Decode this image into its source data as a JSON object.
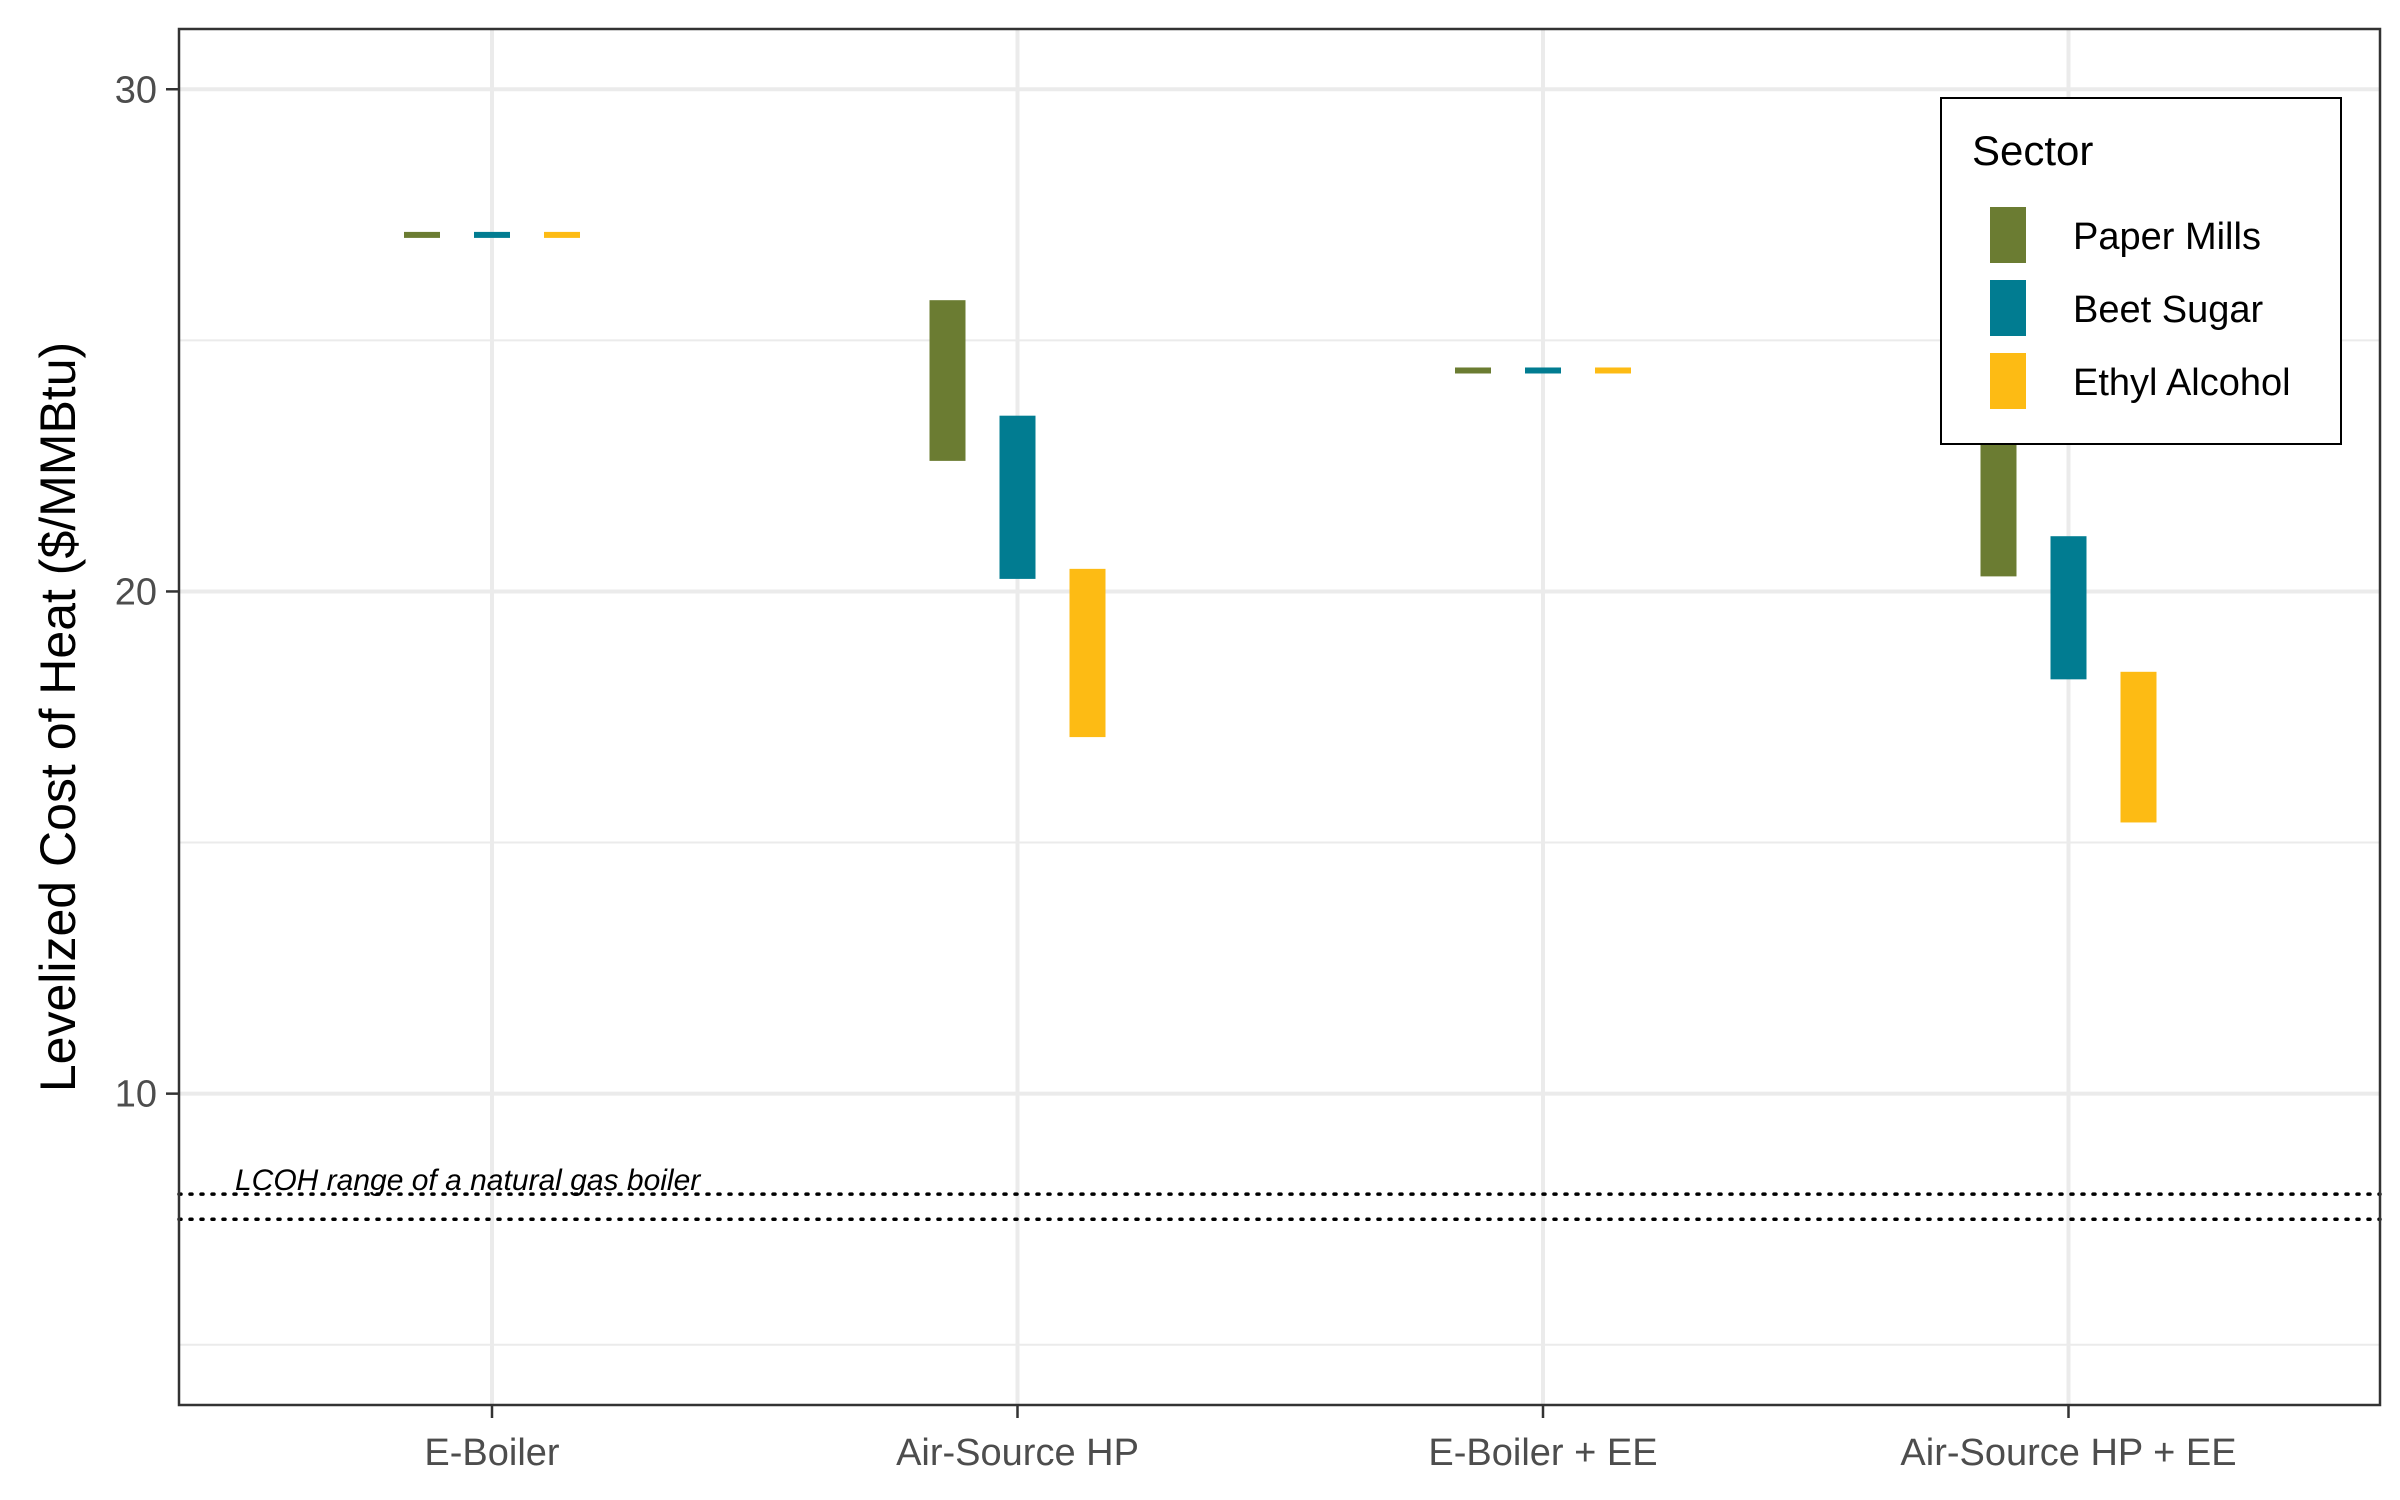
{
  "chart_data": {
    "type": "range-bar",
    "title": "",
    "xlabel": "",
    "ylabel": "Levelized Cost of Heat ($/MMBtu)",
    "ylim": [
      3.8,
      31.2
    ],
    "yticks": [
      10,
      20,
      30
    ],
    "grid": true,
    "legend": {
      "title": "Sector",
      "position": "top-right"
    },
    "categories": [
      "E-Boiler",
      "Air-Source HP",
      "E-Boiler + EE",
      "Air-Source HP + EE"
    ],
    "series": [
      {
        "name": "Paper Mills",
        "color": "#6B7C32",
        "ranges": [
          [
            27.05,
            27.15
          ],
          [
            22.6,
            25.8
          ],
          [
            24.35,
            24.45
          ],
          [
            20.3,
            23.5
          ]
        ]
      },
      {
        "name": "Beet Sugar",
        "color": "#017C91",
        "ranges": [
          [
            27.05,
            27.15
          ],
          [
            20.25,
            23.5
          ],
          [
            24.35,
            24.45
          ],
          [
            18.25,
            21.1
          ]
        ]
      },
      {
        "name": "Ethyl Alcohol",
        "color": "#FDBB14",
        "ranges": [
          [
            27.05,
            27.15
          ],
          [
            17.1,
            20.45
          ],
          [
            24.35,
            24.45
          ],
          [
            15.4,
            18.4
          ]
        ]
      }
    ],
    "reference_lines": {
      "values": [
        8.0,
        7.5
      ],
      "style": "dotted",
      "label": "LCOH range of a natural gas boiler"
    }
  }
}
